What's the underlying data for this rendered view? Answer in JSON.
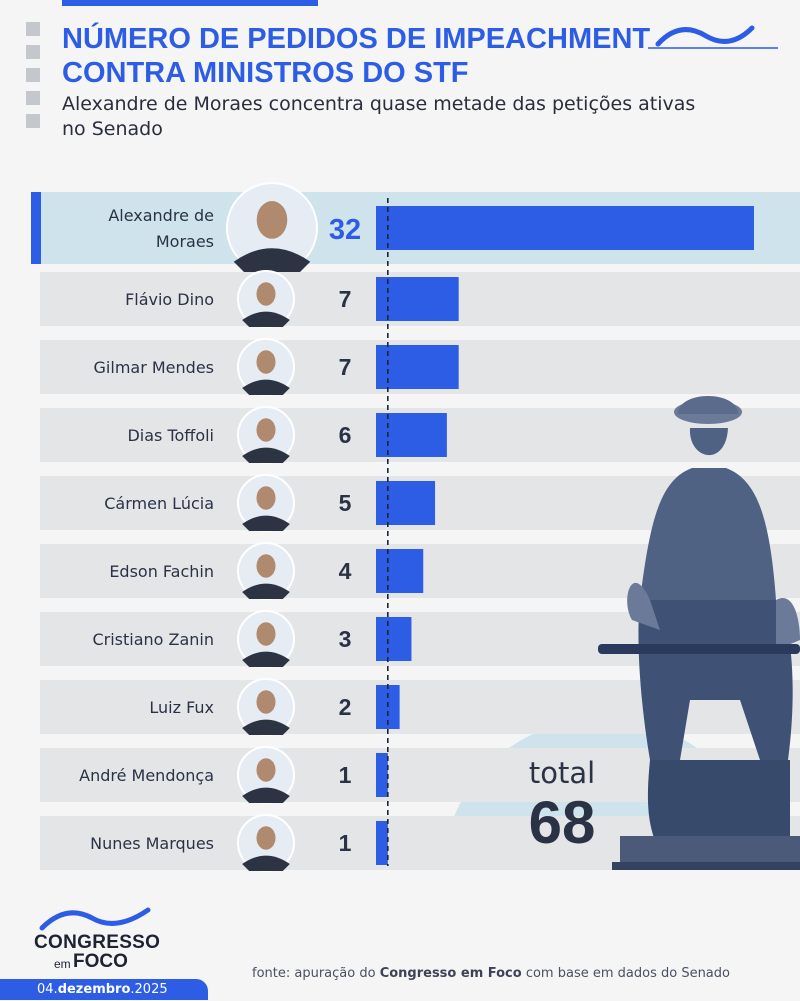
{
  "header": {
    "title": "NÚMERO DE PEDIDOS DE IMPEACHMENT CONTRA MINISTROS DO STF",
    "subtitle": "Alexandre de Moraes concentra quase metade das petições ativas no Senado"
  },
  "total": {
    "label": "total",
    "value": "68"
  },
  "brand": {
    "name_line1": "CONGRESSO",
    "name_small": "em",
    "name_line2": "FOCO"
  },
  "footer": {
    "date_day": "04.",
    "date_month": "dezembro",
    "date_year": ".2025",
    "source_prefix": "fonte: apuração do ",
    "source_brand": "Congresso em Foco",
    "source_suffix": " com base em dados do Senado"
  },
  "colors": {
    "accent": "#2d5de4",
    "row_bg": "#e4e5e7",
    "highlight_bg": "#cfe3ec",
    "text_dark": "#2a3246",
    "photo_bg": "#e6ecf4",
    "statue": "#4f6284"
  },
  "icons": [
    "portrait-icon",
    "statue-of-justice-icon",
    "wave-logo-icon"
  ],
  "chart_data": {
    "type": "bar",
    "orientation": "horizontal",
    "categories": [
      "Alexandre de Moraes",
      "Flávio Dino",
      "Gilmar Mendes",
      "Dias Toffoli",
      "Cármen Lúcia",
      "Edson Fachin",
      "Cristiano Zanin",
      "Luiz Fux",
      "André Mendonça",
      "Nunes Marques"
    ],
    "values": [
      32,
      7,
      7,
      6,
      5,
      4,
      3,
      2,
      1,
      1
    ],
    "value_labels": [
      "32",
      "7",
      "7",
      "6",
      "5",
      "4",
      "3",
      "2",
      "1",
      "1"
    ],
    "highlight": "Alexandre de Moraes",
    "reference_line": 1,
    "title": "NÚMERO DE PEDIDOS DE IMPEACHMENT CONTRA MINISTROS DO STF",
    "xlabel": "",
    "ylabel": "",
    "grid": false,
    "legend": "none"
  }
}
